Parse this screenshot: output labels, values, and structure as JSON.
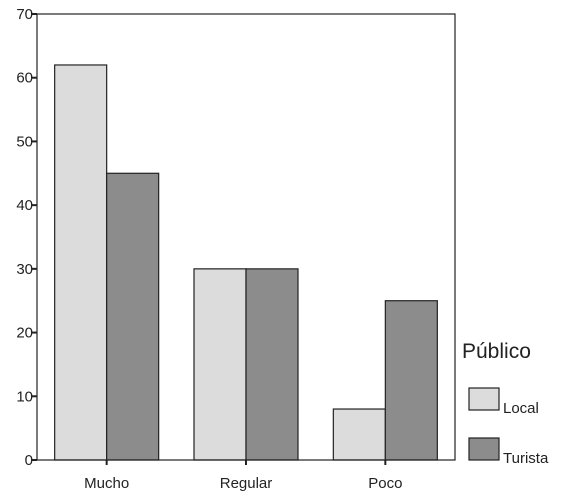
{
  "chart_data": {
    "type": "bar",
    "categories": [
      "Mucho",
      "Regular",
      "Poco"
    ],
    "series": [
      {
        "name": "Local",
        "values": [
          62,
          30,
          8
        ]
      },
      {
        "name": "Turista",
        "values": [
          45,
          30,
          25
        ]
      }
    ],
    "title": "",
    "xlabel": "",
    "ylabel": "",
    "ylim": [
      0,
      70
    ],
    "yticks": [
      0,
      10,
      20,
      30,
      40,
      50,
      60,
      70
    ],
    "grid": false,
    "legend": {
      "title": "Público",
      "placement": "right"
    },
    "colors": {
      "Local": "#dcdcdc",
      "Turista": "#8c8c8c",
      "stroke": "#222222"
    }
  }
}
